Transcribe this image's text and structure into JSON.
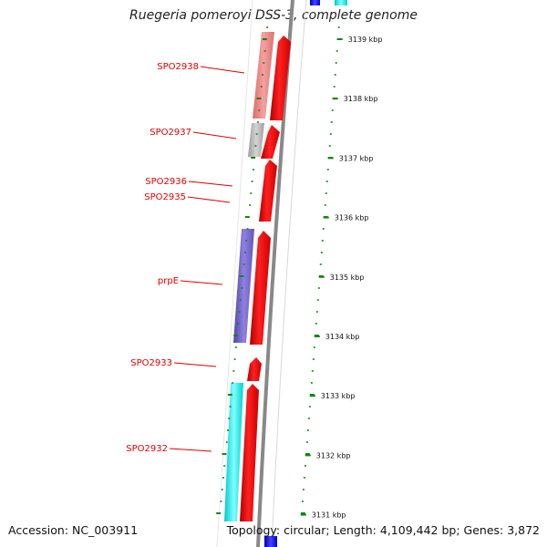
{
  "title": "Ruegeria pomeroyi DSS-3, complete genome",
  "footer": {
    "accession": "Accession: NC_003911",
    "summary": "Topology: circular; Length: 4,109,442 bp; Genes: 3,872"
  },
  "colors": {
    "forward_cds": "#ee0000",
    "reverse_cds_salmon": "#f08080",
    "reverse_cds_grey": "#b4b4b4",
    "reverse_cds_purple": "#7766cc",
    "reverse_cds_cyan": "#00e5e5",
    "backbone": "#888888",
    "tick": "#118811",
    "label": "#dd0000"
  },
  "scale": {
    "labels": [
      "3139 kbp",
      "3138 kbp",
      "3137 kbp",
      "3136 kbp",
      "3135 kbp",
      "3134 kbp",
      "3133 kbp",
      "3132 kbp",
      "3131 kbp"
    ]
  },
  "genes": [
    {
      "name": "SPO2938"
    },
    {
      "name": "SPO2937"
    },
    {
      "name": "SPO2936"
    },
    {
      "name": "SPO2935"
    },
    {
      "name": "prpE"
    },
    {
      "name": "SPO2933"
    },
    {
      "name": "SPO2932"
    }
  ]
}
